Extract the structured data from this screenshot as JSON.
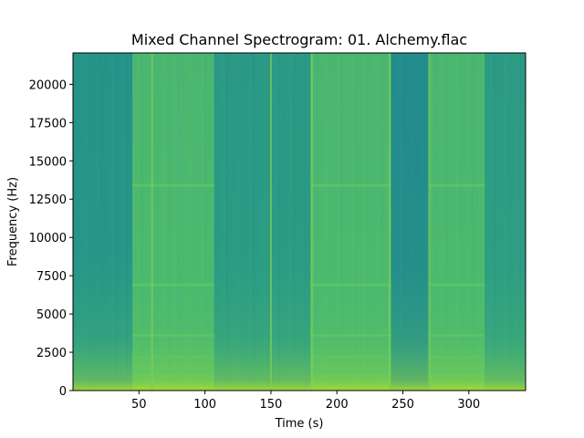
{
  "chart_data": {
    "type": "heatmap",
    "title": "Mixed Channel Spectrogram: 01. Alchemy.flac",
    "xlabel": "Time (s)",
    "ylabel": "Frequency (Hz)",
    "xlim": [
      0,
      343
    ],
    "ylim": [
      0,
      22050
    ],
    "x_ticks": [
      50,
      100,
      150,
      200,
      250,
      300
    ],
    "y_ticks": [
      0,
      2500,
      5000,
      7500,
      10000,
      12500,
      15000,
      17500,
      20000
    ],
    "colormap": "viridis",
    "grid": false,
    "segments": [
      {
        "start": 0,
        "end": 45,
        "level": 0.52
      },
      {
        "start": 45,
        "end": 107,
        "level": 0.68
      },
      {
        "start": 107,
        "end": 180,
        "level": 0.54
      },
      {
        "start": 180,
        "end": 241,
        "level": 0.68
      },
      {
        "start": 241,
        "end": 270,
        "level": 0.48
      },
      {
        "start": 270,
        "end": 312,
        "level": 0.68
      },
      {
        "start": 312,
        "end": 343,
        "level": 0.55
      }
    ],
    "transients": [
      60,
      150,
      181,
      240,
      270
    ]
  }
}
